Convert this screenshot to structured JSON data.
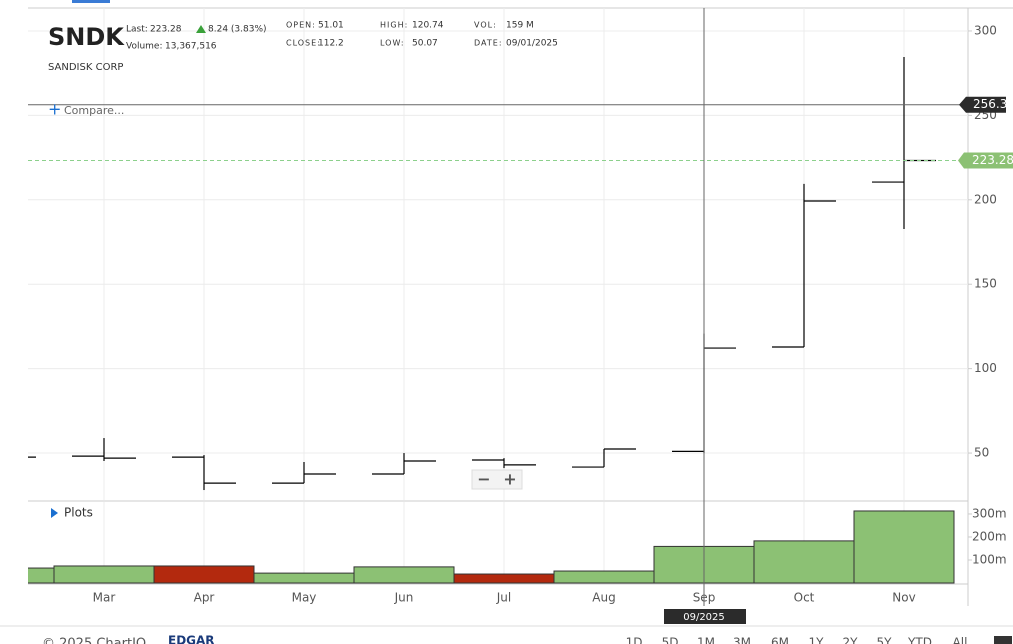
{
  "header": {
    "ticker": "SNDK",
    "last_label": "Last:",
    "last": 223.28,
    "change": "8.24 (3.83%)",
    "volume_label": "Volume:",
    "volume": "13,367,516",
    "company": "SANDISK CORP",
    "stats": [
      {
        "label": "OPEN:",
        "value": "51.01"
      },
      {
        "label": "CLOSE:",
        "value": "112.2"
      },
      {
        "label": "HIGH:",
        "value": "120.74"
      },
      {
        "label": "LOW:",
        "value": "50.07"
      },
      {
        "label": "VOL:",
        "value": "159 M"
      },
      {
        "label": "DATE:",
        "value": "09/01/2025"
      }
    ]
  },
  "compare": "Compare...",
  "plots": "Plots",
  "crosshair": {
    "price": 256.3,
    "date": "09/2025"
  },
  "footer": {
    "copyright": "© 2025 ChartIQ",
    "source": "EDGAR",
    "ranges": [
      "1D",
      "5D",
      "1M",
      "3M",
      "6M",
      "1Y",
      "2Y",
      "5Y",
      "YTD",
      "All"
    ]
  },
  "chart_data": {
    "type": "ohlc",
    "categories": [
      null,
      "Mar",
      "Apr",
      "May",
      "Jun",
      "Jul",
      "Aug",
      "Sep",
      "Oct",
      "Nov"
    ],
    "open": [
      null,
      48.2,
      47.6,
      32.2,
      37.6,
      45.9,
      41.7,
      51.01,
      112.8,
      210.5
    ],
    "high": [
      null,
      58.9,
      48.8,
      44.7,
      50.0,
      47.0,
      52.4,
      120.74,
      209.4,
      284.6
    ],
    "low": [
      null,
      45.3,
      28.1,
      32.2,
      37.6,
      41.1,
      41.7,
      50.07,
      112.8,
      182.7
    ],
    "close": [
      47.6,
      47.0,
      32.2,
      37.6,
      45.3,
      43.0,
      52.4,
      112.2,
      199.3,
      223.28
    ],
    "color": "#000000",
    "ylim": [
      22.2,
      313.6
    ],
    "yticks": [
      50,
      100,
      150,
      200,
      250,
      300
    ],
    "grid": true,
    "volume": {
      "values": [
        65,
        74,
        74,
        43,
        70,
        39,
        52,
        159,
        183,
        313
      ],
      "colors": [
        "#8cc174",
        "#8cc174",
        "#b3290e",
        "#8cc174",
        "#8cc174",
        "#b3290e",
        "#8cc174",
        "#8cc174",
        "#8cc174",
        "#8cc174"
      ],
      "ylim": [
        0,
        352
      ],
      "yticks": [
        {
          "value": 100,
          "label": "100m"
        },
        {
          "value": 200,
          "label": "200m"
        },
        {
          "value": 300,
          "label": "300m"
        }
      ]
    }
  }
}
